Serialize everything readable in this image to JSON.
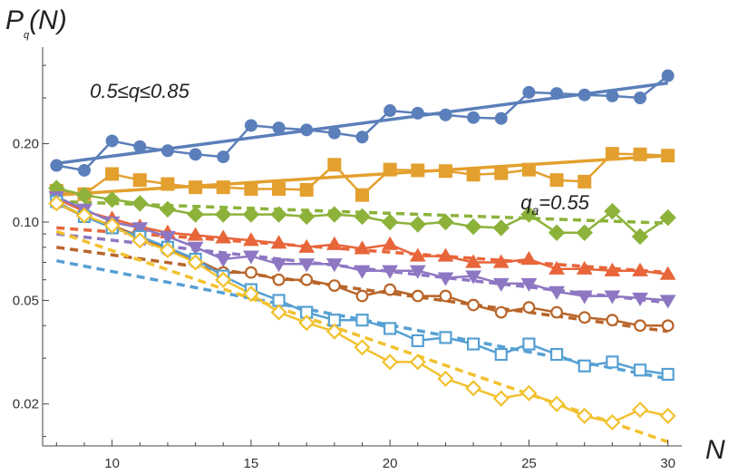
{
  "chart_data": {
    "type": "line",
    "xlabel": "N",
    "ylabel": {
      "main": "P",
      "sub": "q",
      "rest": "(N)"
    },
    "y_scale": "log",
    "xlim": [
      7.5,
      30.5
    ],
    "ylim": [
      0.0138,
      0.47
    ],
    "x_ticks": [
      10,
      15,
      20,
      25,
      30
    ],
    "y_ticks": [
      0.02,
      0.05,
      0.1,
      0.2
    ],
    "y_tick_labels": [
      "0.02",
      "0.05",
      "0.10",
      "0.20"
    ],
    "grid": false,
    "annotations": [
      {
        "id": "range",
        "text": "0.5≤q≤0.85",
        "x": 9.2,
        "y": 0.3
      },
      {
        "id": "qa",
        "main": "q",
        "sub": "a",
        "rest": "=0.55",
        "x": 24.7,
        "y": 0.112
      }
    ],
    "x": [
      8,
      9,
      10,
      11,
      12,
      13,
      14,
      15,
      16,
      17,
      18,
      19,
      20,
      21,
      22,
      23,
      24,
      25,
      26,
      27,
      28,
      29,
      30
    ],
    "series": [
      {
        "color": "#5b7fba",
        "marker": "circle",
        "filled": true,
        "values": [
          0.165,
          0.158,
          0.205,
          0.195,
          0.188,
          0.182,
          0.178,
          0.235,
          0.23,
          0.226,
          0.22,
          0.212,
          0.268,
          0.262,
          0.258,
          0.252,
          0.25,
          0.315,
          0.312,
          0.308,
          0.305,
          0.3,
          0.365
        ],
        "fit": {
          "from": [
            8,
            0.168
          ],
          "to": [
            30,
            0.342
          ],
          "dashed": false
        }
      },
      {
        "color": "#e3a02e",
        "marker": "square",
        "filled": true,
        "values": [
          0.132,
          0.128,
          0.153,
          0.145,
          0.14,
          0.136,
          0.136,
          0.134,
          0.134,
          0.133,
          0.166,
          0.127,
          0.159,
          0.158,
          0.157,
          0.152,
          0.154,
          0.159,
          0.145,
          0.143,
          0.183,
          0.182,
          0.18
        ],
        "fit": {
          "from": [
            8,
            0.127
          ],
          "to": [
            30,
            0.18
          ],
          "dashed": false
        }
      },
      {
        "color": "#8cb23a",
        "marker": "diamond",
        "filled": true,
        "values": [
          0.135,
          0.127,
          0.122,
          0.118,
          0.112,
          0.107,
          0.107,
          0.107,
          0.107,
          0.105,
          0.107,
          0.105,
          0.1,
          0.098,
          0.1,
          0.096,
          0.095,
          0.107,
          0.091,
          0.091,
          0.11,
          0.088,
          0.104
        ],
        "fit": {
          "from": [
            8,
            0.12
          ],
          "to": [
            30,
            0.099
          ],
          "dashed": true
        }
      },
      {
        "color": "#e8653a",
        "marker": "triangle-up",
        "filled": true,
        "values": [
          0.123,
          0.11,
          0.103,
          0.096,
          0.091,
          0.089,
          0.087,
          0.085,
          0.083,
          0.08,
          0.082,
          0.079,
          0.082,
          0.074,
          0.074,
          0.07,
          0.07,
          0.072,
          0.066,
          0.066,
          0.065,
          0.065,
          0.063
        ],
        "fit": {
          "from": [
            8,
            0.095
          ],
          "to": [
            30,
            0.064
          ],
          "dashed": true
        }
      },
      {
        "color": "#8e77c2",
        "marker": "triangle-down",
        "filled": true,
        "values": [
          0.125,
          0.112,
          0.1,
          0.095,
          0.088,
          0.08,
          0.072,
          0.074,
          0.069,
          0.069,
          0.069,
          0.065,
          0.065,
          0.065,
          0.061,
          0.062,
          0.058,
          0.058,
          0.054,
          0.052,
          0.052,
          0.051,
          0.05
        ],
        "fit": {
          "from": [
            8,
            0.09
          ],
          "to": [
            30,
            0.049
          ],
          "dashed": true
        }
      },
      {
        "color": "#b8652a",
        "marker": "circle",
        "filled": false,
        "values": [
          0.118,
          0.105,
          0.097,
          0.088,
          0.078,
          0.072,
          0.064,
          0.064,
          0.06,
          0.06,
          0.057,
          0.052,
          0.055,
          0.052,
          0.052,
          0.048,
          0.045,
          0.047,
          0.045,
          0.043,
          0.042,
          0.04,
          0.04
        ],
        "fit": {
          "from": [
            8,
            0.08
          ],
          "to": [
            30,
            0.038
          ],
          "dashed": true
        }
      },
      {
        "color": "#56a0d3",
        "marker": "square",
        "filled": false,
        "values": [
          0.12,
          0.105,
          0.095,
          0.088,
          0.08,
          0.072,
          0.062,
          0.055,
          0.05,
          0.045,
          0.042,
          0.042,
          0.039,
          0.035,
          0.036,
          0.034,
          0.031,
          0.034,
          0.031,
          0.028,
          0.029,
          0.027,
          0.026
        ],
        "fit": {
          "from": [
            8,
            0.071
          ],
          "to": [
            30,
            0.025
          ],
          "dashed": true
        }
      },
      {
        "color": "#f2c12e",
        "marker": "diamond",
        "filled": false,
        "values": [
          0.118,
          0.106,
          0.097,
          0.085,
          0.078,
          0.07,
          0.06,
          0.053,
          0.045,
          0.041,
          0.038,
          0.033,
          0.029,
          0.029,
          0.025,
          0.023,
          0.021,
          0.022,
          0.02,
          0.018,
          0.017,
          0.019,
          0.018
        ],
        "fit": {
          "from": [
            8,
            0.092
          ],
          "to": [
            30,
            0.0143
          ],
          "dashed": true
        }
      }
    ]
  }
}
